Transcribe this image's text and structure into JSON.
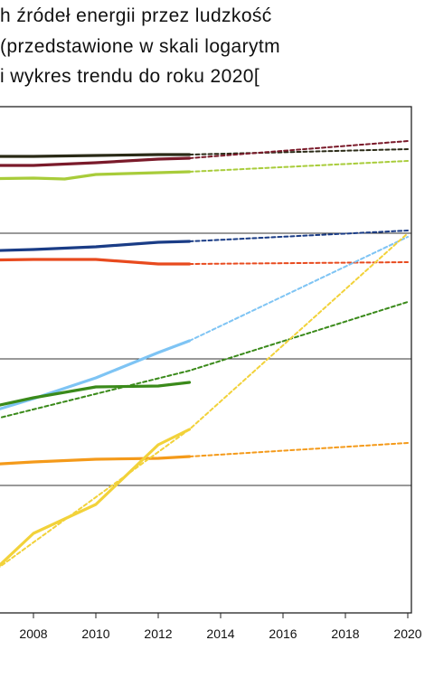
{
  "chart_data": {
    "type": "line",
    "title_lines": [
      "h źródeł energii przez ludzkość",
      "(przedstawione w skali logarytm",
      "i wykres trendu do roku 2020["
    ],
    "xlabel": "",
    "ylabel": "",
    "x_ticks": [
      "2008",
      "2010",
      "2012",
      "2014",
      "2016",
      "2018",
      "2020"
    ],
    "xlim": [
      2006,
      2020
    ],
    "y_scale": "log",
    "grid": "horizontal lines at decades",
    "series": [
      {
        "color": "#2a2a16",
        "style": "solid",
        "points": [
          [
            2006,
            173
          ],
          [
            2008,
            173
          ],
          [
            2010,
            172
          ],
          [
            2012,
            171
          ],
          [
            2013,
            171
          ]
        ]
      },
      {
        "color": "#2a2a16",
        "style": "dotted",
        "points": [
          [
            2013,
            171
          ],
          [
            2020,
            165
          ]
        ]
      },
      {
        "color": "#7a1a2a",
        "style": "solid",
        "points": [
          [
            2006,
            183
          ],
          [
            2008,
            183
          ],
          [
            2010,
            180
          ],
          [
            2012,
            176
          ],
          [
            2013,
            175
          ]
        ]
      },
      {
        "color": "#7a1a2a",
        "style": "dotted",
        "points": [
          [
            2013,
            175
          ],
          [
            2020,
            156
          ]
        ]
      },
      {
        "color": "#a8cc3a",
        "style": "solid",
        "points": [
          [
            2006,
            198
          ],
          [
            2008,
            197
          ],
          [
            2009,
            198
          ],
          [
            2010,
            193
          ],
          [
            2012,
            191
          ],
          [
            2013,
            190
          ]
        ]
      },
      {
        "color": "#a8cc3a",
        "style": "dotted",
        "points": [
          [
            2013,
            190
          ],
          [
            2020,
            178
          ]
        ]
      },
      {
        "color": "#1a3c86",
        "style": "solid",
        "points": [
          [
            2006,
            278
          ],
          [
            2008,
            276
          ],
          [
            2010,
            273
          ],
          [
            2012,
            268
          ],
          [
            2013,
            267
          ]
        ]
      },
      {
        "color": "#1a3c86",
        "style": "dotted",
        "points": [
          [
            2013,
            267
          ],
          [
            2020,
            255
          ]
        ]
      },
      {
        "color": "#e84a1e",
        "style": "solid",
        "points": [
          [
            2006,
            288
          ],
          [
            2008,
            287
          ],
          [
            2010,
            287
          ],
          [
            2012,
            292
          ],
          [
            2013,
            292
          ]
        ]
      },
      {
        "color": "#e84a1e",
        "style": "dotted",
        "points": [
          [
            2013,
            292
          ],
          [
            2020,
            290
          ]
        ]
      },
      {
        "color": "#7ec4f4",
        "style": "solid",
        "points": [
          [
            2006,
            462
          ],
          [
            2008,
            441
          ],
          [
            2010,
            418
          ],
          [
            2012,
            390
          ],
          [
            2013,
            377
          ]
        ]
      },
      {
        "color": "#7ec4f4",
        "style": "dotted",
        "points": [
          [
            2013,
            377
          ],
          [
            2020,
            262
          ]
        ]
      },
      {
        "color": "#3a8a1a",
        "style": "solid",
        "points": [
          [
            2006,
            455
          ],
          [
            2008,
            440
          ],
          [
            2010,
            428
          ],
          [
            2012,
            427
          ],
          [
            2013,
            423
          ]
        ]
      },
      {
        "color": "#3a8a1a",
        "style": "dotted",
        "points": [
          [
            2006,
            470
          ],
          [
            2013,
            410
          ],
          [
            2020,
            334
          ]
        ]
      },
      {
        "color": "#f49a1a",
        "style": "solid",
        "points": [
          [
            2006,
            515
          ],
          [
            2008,
            511
          ],
          [
            2010,
            508
          ],
          [
            2012,
            507
          ],
          [
            2013,
            505
          ]
        ]
      },
      {
        "color": "#f49a1a",
        "style": "dotted",
        "points": [
          [
            2013,
            505
          ],
          [
            2020,
            490
          ]
        ]
      },
      {
        "color": "#f2d23a",
        "style": "solid",
        "points": [
          [
            2006,
            655
          ],
          [
            2008,
            590
          ],
          [
            2010,
            558
          ],
          [
            2012,
            492
          ],
          [
            2013,
            475
          ]
        ]
      },
      {
        "color": "#f2d23a",
        "style": "dotted",
        "points": [
          [
            2006,
            650
          ],
          [
            2013,
            475
          ],
          [
            2020,
            258
          ]
        ]
      }
    ]
  }
}
